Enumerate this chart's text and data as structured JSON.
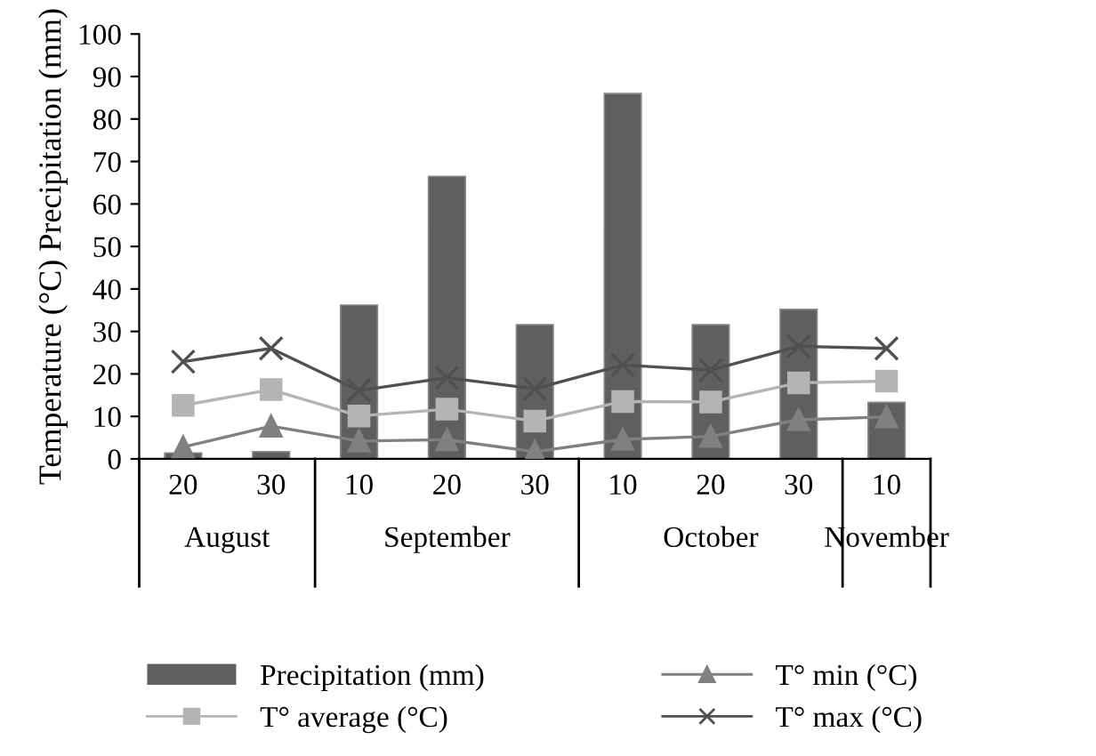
{
  "chart_data": {
    "type": "bar",
    "ylabel": "Temperature (°C) Precipitation (mm)",
    "categories": [
      "20",
      "30",
      "10",
      "20",
      "30",
      "10",
      "20",
      "30",
      "10"
    ],
    "annotations": [
      "August",
      "September",
      "October",
      "November"
    ],
    "series": [
      {
        "name": "Precipitation (mm)",
        "color": "#5f5f5f",
        "values": [
          1.4,
          1.7,
          36.2,
          66.5,
          31.6,
          86,
          31.6,
          35.2,
          13.3
        ]
      },
      {
        "name": "T° average (°C)",
        "type": "line",
        "marker": "square",
        "color": "#b4b4b4",
        "values": [
          12.6,
          16.3,
          10.1,
          11.7,
          8.9,
          13.5,
          13.4,
          17.9,
          18.3
        ]
      },
      {
        "name": "T° min (°C)",
        "type": "line",
        "marker": "triangle",
        "color": "#808080",
        "values": [
          2.8,
          7.7,
          4.2,
          4.5,
          1.7,
          4.6,
          5.3,
          9.2,
          9.9
        ]
      },
      {
        "name": "T° max (°C)",
        "type": "line",
        "marker": "cross",
        "color": "#505050",
        "values": [
          22.9,
          26,
          16.1,
          19.1,
          16.5,
          22.1,
          20.9,
          26.5,
          26
        ]
      }
    ],
    "ylim": [
      0,
      100
    ],
    "yticks": [
      0,
      10,
      20,
      30,
      40,
      50,
      60,
      70,
      80,
      90,
      100
    ],
    "grid": false,
    "legend": "bottom"
  }
}
